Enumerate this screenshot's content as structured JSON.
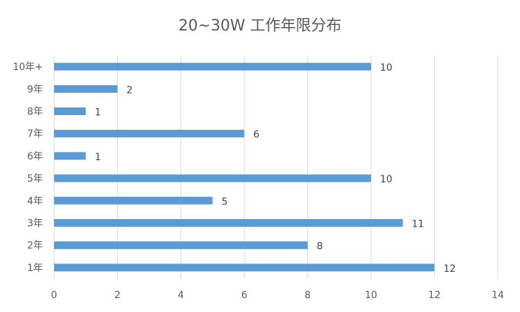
{
  "chart_data": {
    "type": "bar",
    "orientation": "horizontal",
    "title": "20~30W 工作年限分布",
    "categories": [
      "1年",
      "2年",
      "3年",
      "4年",
      "5年",
      "6年",
      "7年",
      "8年",
      "9年",
      "10年+"
    ],
    "values": [
      12,
      8,
      11,
      5,
      10,
      1,
      6,
      1,
      2,
      10
    ],
    "xlim": [
      0,
      14
    ],
    "x_ticks": [
      0,
      2,
      4,
      6,
      8,
      10,
      12,
      14
    ],
    "grid": "vertical",
    "legend": "none",
    "data_labels": true,
    "bar_color": "#5B9BD5"
  }
}
